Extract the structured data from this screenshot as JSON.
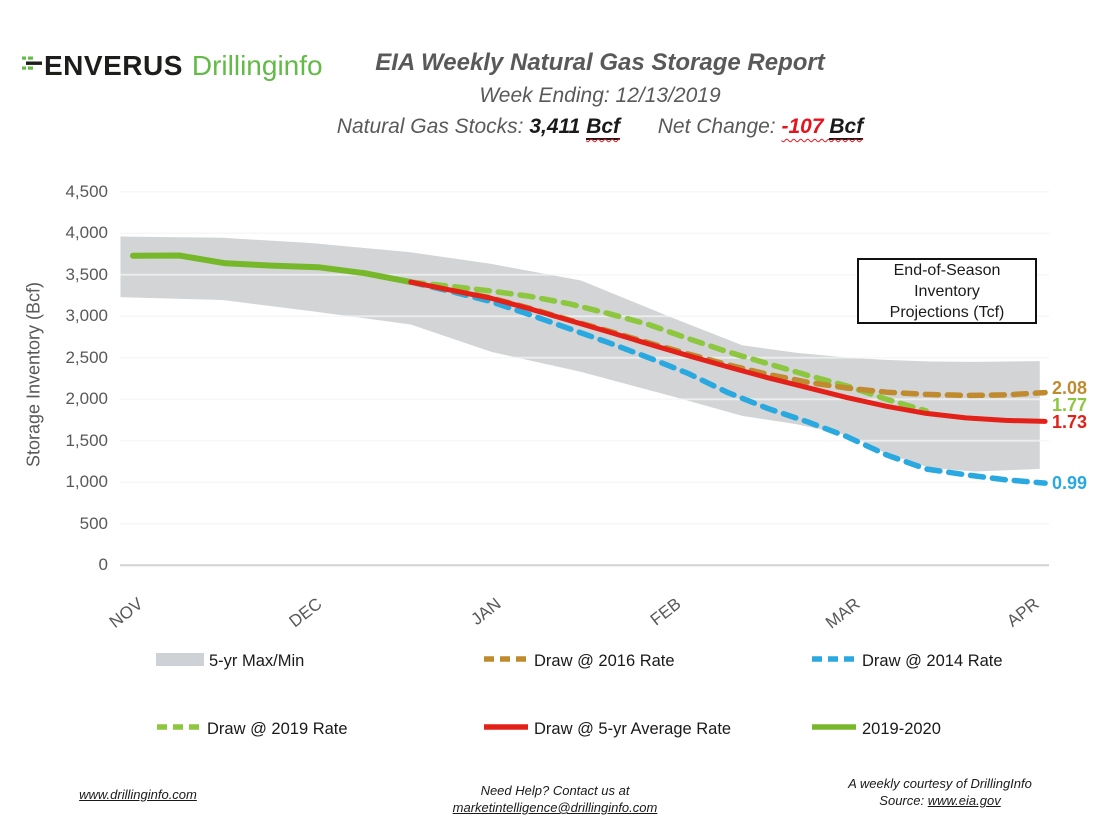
{
  "header": {
    "logo": {
      "brand": "ENVERUS",
      "product": "Drillinginfo",
      "brand_color": "#1d1d1b",
      "product_color": "#62bb46"
    },
    "title": "EIA Weekly Natural Gas Storage Report",
    "week_label": "Week Ending: ",
    "week_value": "12/13/2019",
    "stocks_label": "Natural Gas Stocks: ",
    "stocks_value": "3,411",
    "stocks_unit": "Bcf",
    "net_change_label": "Net Change: ",
    "net_change_value": "-107",
    "net_change_unit": "Bcf",
    "net_change_color": "#e8121c"
  },
  "chart_data": {
    "type": "line",
    "ylabel": "Storage Inventory (Bcf)",
    "ylim": [
      0,
      4500
    ],
    "grid": true,
    "y_ticks": {
      "values": [
        4500,
        4000,
        3500,
        3000,
        2500,
        2000,
        1500,
        1000,
        500,
        0
      ],
      "labels": [
        "4,500",
        "4,000",
        "3,500",
        "3,000",
        "2,500",
        "2,000",
        "1,500",
        "1,000",
        "500",
        "0"
      ]
    },
    "x_categories": [
      "NOV",
      "DEC",
      "JAN",
      "FEB",
      "MAR",
      "APR"
    ],
    "band": {
      "name": "5-yr Max/Min",
      "color": "#d2d4d6",
      "m": [
        -0.07,
        0.5,
        1.0,
        1.55,
        2.0,
        2.5,
        3.0,
        3.4,
        3.7,
        4.0,
        4.2,
        4.45,
        4.7,
        5.06
      ],
      "top": [
        3960,
        3945,
        3880,
        3770,
        3630,
        3430,
        2990,
        2650,
        2560,
        2500,
        2475,
        2455,
        2450,
        2460
      ],
      "bottom": [
        3230,
        3195,
        3060,
        2900,
        2570,
        2330,
        2040,
        1800,
        1700,
        1560,
        1350,
        1170,
        1130,
        1160
      ]
    },
    "series": [
      {
        "name": "2019-2020",
        "style": "solid",
        "width": 6,
        "color": "#76b82a",
        "start": 0,
        "step": 0.25833,
        "values": [
          3729,
          3732,
          3638,
          3610,
          3591,
          3518,
          3411
        ]
      },
      {
        "name": "Draw @ 2019 Rate",
        "style": "dashed",
        "width": 5.5,
        "color": "#8dc63f",
        "start": 1.55,
        "step": 0.22125,
        "values": [
          3411,
          3360,
          3305,
          3240,
          3150,
          3030,
          2900,
          2730,
          2570,
          2430,
          2290,
          2160,
          2000,
          1860
        ]
      },
      {
        "name": "Draw @ 2014 Rate",
        "style": "dashed",
        "width": 5.5,
        "color": "#29a9e0",
        "start": 1.55,
        "step": 0.22125,
        "values": [
          3411,
          3300,
          3180,
          3020,
          2850,
          2680,
          2500,
          2310,
          2080,
          1890,
          1730,
          1550,
          1330,
          1160,
          1090,
          1030,
          990
        ]
      },
      {
        "name": "Draw @ 2016 Rate",
        "style": "dashed",
        "width": 5.5,
        "color": "#bf8b2e",
        "start": 1.55,
        "step": 0.22125,
        "values": [
          3411,
          3315,
          3225,
          3095,
          2955,
          2820,
          2680,
          2545,
          2415,
          2300,
          2205,
          2135,
          2085,
          2058,
          2046,
          2052,
          2080
        ]
      },
      {
        "name": "Draw @ 5-yr Average Rate",
        "style": "solid",
        "width": 5,
        "color": "#e32119",
        "start": 1.55,
        "step": 0.22125,
        "values": [
          3411,
          3315,
          3220,
          3090,
          2950,
          2810,
          2665,
          2525,
          2390,
          2260,
          2140,
          2020,
          1915,
          1830,
          1775,
          1745,
          1733
        ]
      }
    ],
    "end_labels": [
      {
        "text": "2.08",
        "value": 2080,
        "color": "#bf8b2e"
      },
      {
        "text": "1.77",
        "value": 1770,
        "color": "#8dc63f"
      },
      {
        "text": "1.73",
        "value": 1730,
        "color": "#e32119"
      },
      {
        "text": "0.99",
        "value": 990,
        "color": "#29a9e0"
      }
    ],
    "annotation": {
      "lines": [
        "End-of-Season",
        "Inventory",
        "Projections (Tcf)"
      ]
    }
  },
  "legend": {
    "items": [
      {
        "label": "5-yr Max/Min",
        "type": "band",
        "color": "#ced1d5"
      },
      {
        "label": "Draw @ 2016 Rate",
        "type": "dashed",
        "color": "#bf8b2e"
      },
      {
        "label": "Draw @ 2014 Rate",
        "type": "dashed",
        "color": "#29a9e0"
      },
      {
        "label": "Draw @ 2019 Rate",
        "type": "dashed",
        "color": "#8dc63f"
      },
      {
        "label": "Draw @ 5-yr Average Rate",
        "type": "solid",
        "color": "#e32119"
      },
      {
        "label": "2019-2020",
        "type": "solid",
        "color": "#76b82a"
      }
    ]
  },
  "footer": {
    "left_link": "www.drillinginfo.com",
    "center_line1": "Need Help? Contact us at",
    "center_link": "marketintelligence@drillinginfo.com",
    "right_line1": "A weekly courtesy of DrillingInfo",
    "right_line2_prefix": "Source: ",
    "right_link": "www.eia.gov"
  }
}
